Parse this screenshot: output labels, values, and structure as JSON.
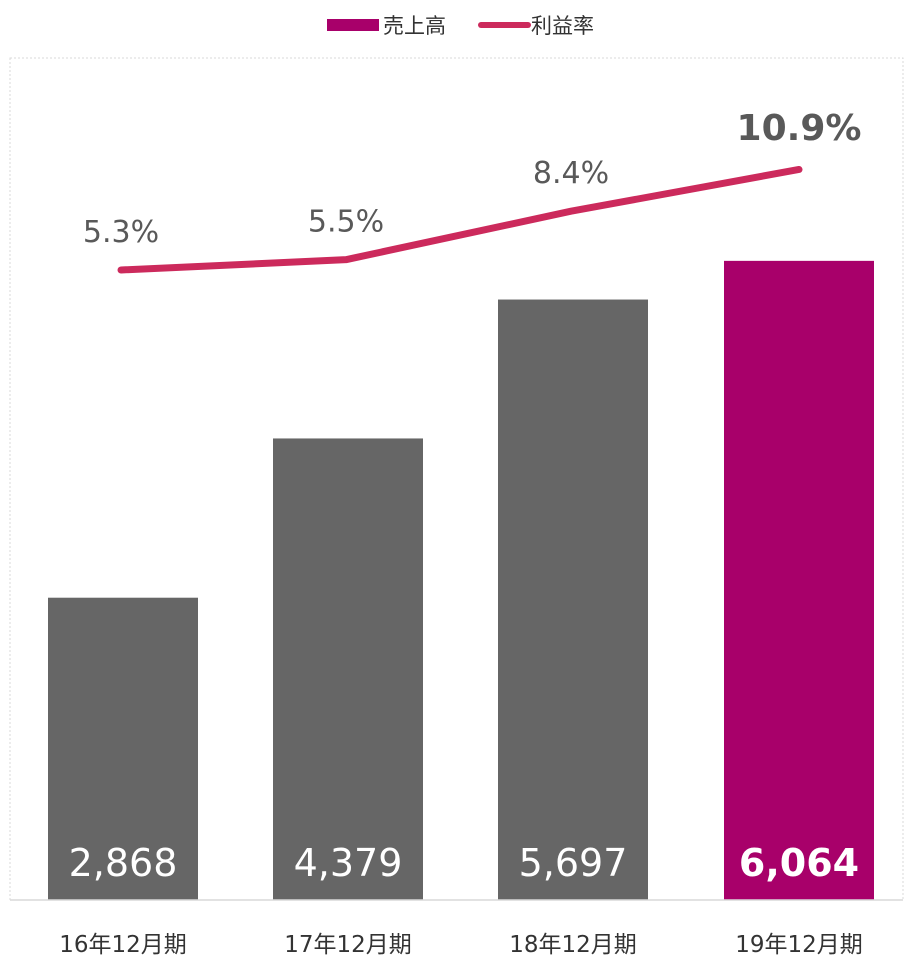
{
  "chart_data": {
    "type": "bar",
    "categories": [
      "16年12月期",
      "17年12月期",
      "18年12月期",
      "19年12月期"
    ],
    "series": [
      {
        "name": "売上高",
        "kind": "bar",
        "values": [
          2868,
          4379,
          5697,
          6064
        ],
        "labels": [
          "2,868",
          "4,379",
          "5,697",
          "6,064"
        ]
      },
      {
        "name": "利益率",
        "kind": "line",
        "values": [
          5.3,
          5.5,
          8.4,
          10.9
        ],
        "labels": [
          "5.3%",
          "5.5%",
          "8.4%",
          "10.9%"
        ]
      }
    ],
    "highlight_index": 3,
    "legend_position": "top-center",
    "grid": false,
    "colors": {
      "bar": "#666666",
      "bar_highlight": "#a8006a",
      "line": "#cc2a5c"
    }
  }
}
